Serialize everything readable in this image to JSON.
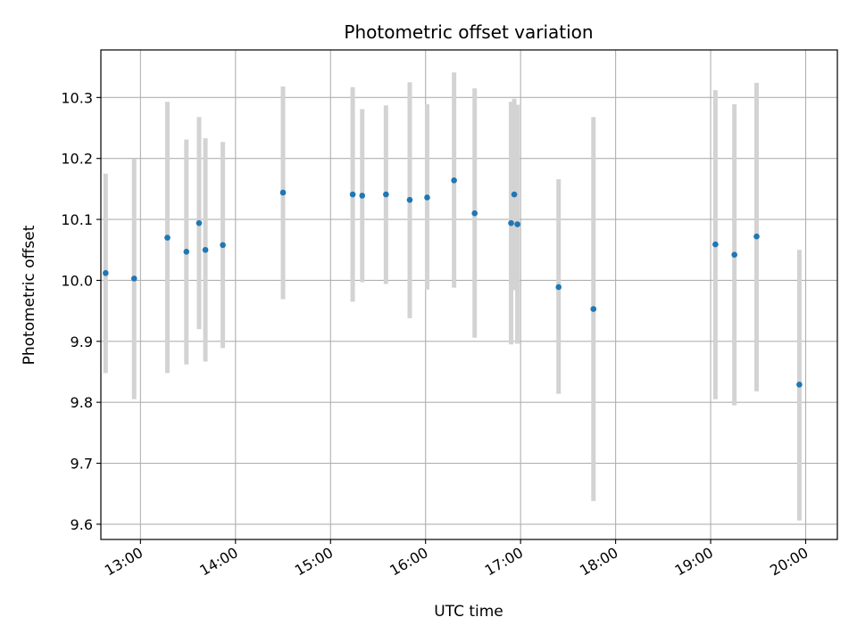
{
  "chart_data": {
    "type": "scatter",
    "title": "Photometric offset variation",
    "xlabel": "UTC time",
    "ylabel": "Photometric offset",
    "x_unit": "hours",
    "xlim": [
      "12:35",
      "20:20"
    ],
    "ylim": [
      9.575,
      10.378
    ],
    "grid": true,
    "x_ticks": [
      "13:00",
      "14:00",
      "15:00",
      "16:00",
      "17:00",
      "18:00",
      "19:00",
      "20:00"
    ],
    "y_ticks": [
      "9.6",
      "9.7",
      "9.8",
      "9.9",
      "10.0",
      "10.1",
      "10.2",
      "10.3"
    ],
    "colors": {
      "point": "#1f77b4",
      "errorbar": "#d3d3d3",
      "grid": "#b0b0b0"
    },
    "points": [
      {
        "x": "12:38",
        "y": 10.012,
        "lo": 9.848,
        "hi": 10.175
      },
      {
        "x": "12:56",
        "y": 10.003,
        "lo": 9.805,
        "hi": 10.199
      },
      {
        "x": "13:17",
        "y": 10.07,
        "lo": 9.848,
        "hi": 10.293
      },
      {
        "x": "13:29",
        "y": 10.047,
        "lo": 9.862,
        "hi": 10.231
      },
      {
        "x": "13:37",
        "y": 10.094,
        "lo": 9.92,
        "hi": 10.268
      },
      {
        "x": "13:41",
        "y": 10.05,
        "lo": 9.867,
        "hi": 10.233
      },
      {
        "x": "13:52",
        "y": 10.058,
        "lo": 9.889,
        "hi": 10.227
      },
      {
        "x": "14:30",
        "y": 10.144,
        "lo": 9.969,
        "hi": 10.318
      },
      {
        "x": "15:14",
        "y": 10.141,
        "lo": 9.965,
        "hi": 10.317
      },
      {
        "x": "15:20",
        "y": 10.139,
        "lo": 9.997,
        "hi": 10.281
      },
      {
        "x": "15:35",
        "y": 10.141,
        "lo": 9.994,
        "hi": 10.287
      },
      {
        "x": "15:50",
        "y": 10.132,
        "lo": 9.938,
        "hi": 10.325
      },
      {
        "x": "16:01",
        "y": 10.136,
        "lo": 9.985,
        "hi": 10.289
      },
      {
        "x": "16:18",
        "y": 10.164,
        "lo": 9.988,
        "hi": 10.341
      },
      {
        "x": "16:31",
        "y": 10.11,
        "lo": 9.906,
        "hi": 10.315
      },
      {
        "x": "16:54",
        "y": 10.094,
        "lo": 9.895,
        "hi": 10.293
      },
      {
        "x": "16:56",
        "y": 10.141,
        "lo": 9.984,
        "hi": 10.298
      },
      {
        "x": "16:58",
        "y": 10.092,
        "lo": 9.896,
        "hi": 10.288
      },
      {
        "x": "17:24",
        "y": 9.989,
        "lo": 9.814,
        "hi": 10.166
      },
      {
        "x": "17:46",
        "y": 9.953,
        "lo": 9.638,
        "hi": 10.268
      },
      {
        "x": "19:03",
        "y": 10.059,
        "lo": 9.805,
        "hi": 10.312
      },
      {
        "x": "19:15",
        "y": 10.042,
        "lo": 9.795,
        "hi": 10.289
      },
      {
        "x": "19:29",
        "y": 10.072,
        "lo": 9.818,
        "hi": 10.324
      },
      {
        "x": "19:56",
        "y": 9.829,
        "lo": 9.606,
        "hi": 10.05
      }
    ]
  }
}
